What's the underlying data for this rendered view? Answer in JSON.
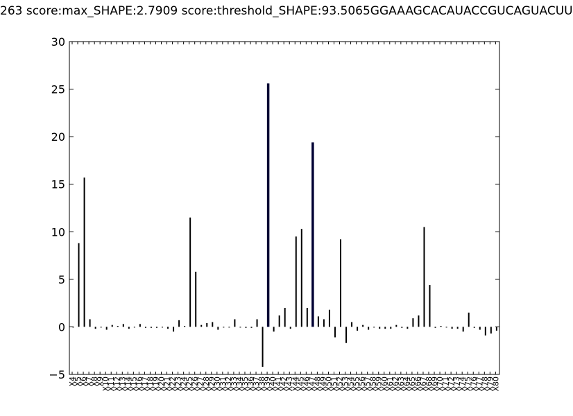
{
  "chart_data": {
    "type": "bar",
    "title": "263 score:max_SHAPE:2.7909 score:threshold_SHAPE:93.5065GGAAAGCACAUACCGUCAGUACUU",
    "xlabel": "",
    "ylabel": "",
    "ylim": [
      -5,
      30
    ],
    "yticks": [
      "−5",
      "0",
      "5",
      "10",
      "15",
      "20",
      "25",
      "30"
    ],
    "ytick_values": [
      -5,
      0,
      5,
      10,
      15,
      20,
      25,
      30
    ],
    "grid": false,
    "bar_color": "#000000",
    "highlight_color": "#000033",
    "categories": [
      "X4",
      "X5",
      "X6",
      "X7",
      "X8",
      "X9",
      "X10",
      "X11",
      "X12",
      "X13",
      "X14",
      "X15",
      "X16",
      "X17",
      "X18",
      "X19",
      "X20",
      "X21",
      "X22",
      "X23",
      "X24",
      "X25",
      "X26",
      "X27",
      "X28",
      "X29",
      "X30",
      "X31",
      "X32",
      "X33",
      "X34",
      "X35",
      "X36",
      "X37",
      "X38",
      "X39",
      "X40",
      "X41",
      "X42",
      "X43",
      "X44",
      "X45",
      "X46",
      "X47",
      "X48",
      "X49",
      "X50",
      "X51",
      "X52",
      "X53",
      "X54",
      "X55",
      "X56",
      "X57",
      "X58",
      "X59",
      "X60",
      "X61",
      "X62",
      "X63",
      "X64",
      "X65",
      "X66",
      "X67",
      "X68",
      "X69",
      "X70",
      "X71",
      "X72",
      "X73",
      "X74",
      "X75",
      "X76",
      "X77",
      "X78",
      "X79",
      "X80"
    ],
    "values": [
      0,
      8.8,
      15.7,
      0.8,
      -0.2,
      0,
      -0.3,
      0.2,
      0.1,
      0.3,
      -0.2,
      0,
      0.3,
      -0.1,
      -0.1,
      -0.1,
      0,
      -0.2,
      -0.5,
      0.7,
      0.1,
      11.5,
      5.8,
      0.2,
      0.4,
      0.5,
      -0.3,
      0,
      0,
      0.8,
      0,
      -0.1,
      -0.1,
      0.8,
      -4.2,
      25.6,
      -0.5,
      1.2,
      2.0,
      -0.2,
      9.5,
      10.3,
      2.0,
      19.4,
      1.1,
      0.8,
      1.8,
      -1.1,
      9.2,
      -1.7,
      0.5,
      -0.4,
      0.2,
      -0.3,
      0,
      -0.2,
      -0.2,
      -0.2,
      0.2,
      -0.1,
      -0.2,
      0.9,
      1.2,
      10.5,
      4.4,
      -0.1,
      0.1,
      0,
      -0.2,
      -0.2,
      -0.5,
      1.5,
      -0.1,
      -0.3,
      -0.9,
      -0.7,
      -0.4
    ],
    "highlighted": [
      "X39",
      "X47"
    ]
  }
}
